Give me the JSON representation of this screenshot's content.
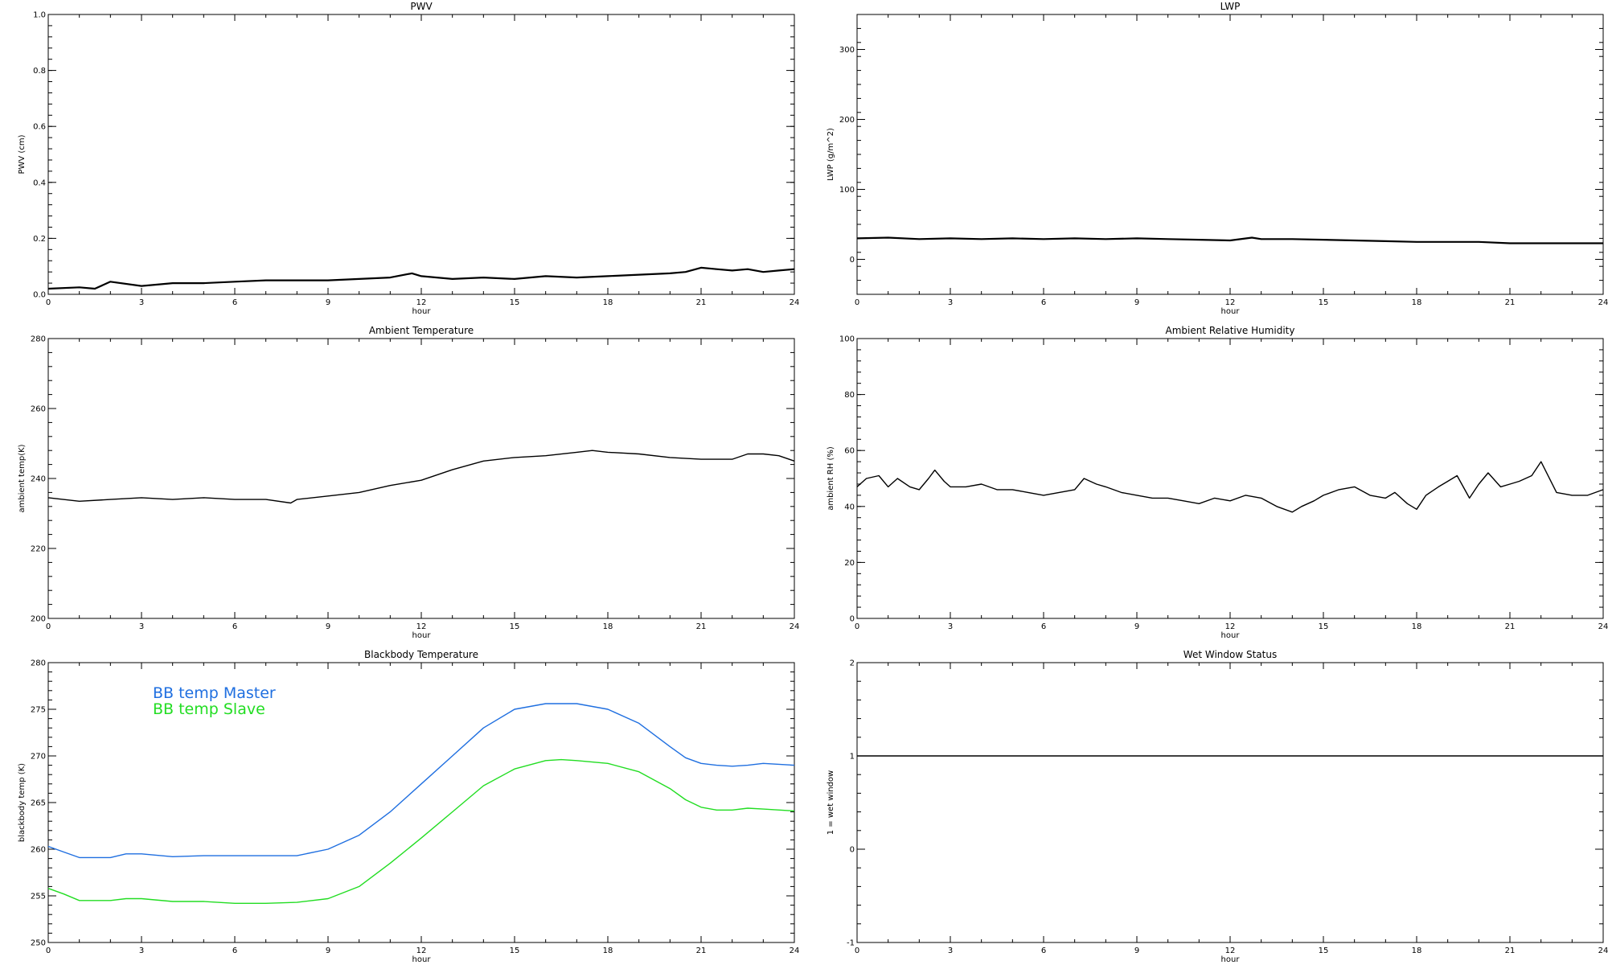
{
  "chart_data": [
    {
      "type": "line",
      "title": "PWV",
      "xlabel": "hour",
      "ylabel": "PWV (cm)",
      "xlim": [
        0,
        24
      ],
      "ylim": [
        0,
        1
      ],
      "xticks": [
        "0",
        "3",
        "6",
        "9",
        "12",
        "15",
        "18",
        "21",
        "24"
      ],
      "yticks": [
        "0.0",
        "0.2",
        "0.4",
        "0.6",
        "0.8",
        "1.0"
      ],
      "grid": false,
      "series": [
        {
          "color": "#000000",
          "x": [
            0,
            1,
            1.5,
            2,
            3,
            4,
            5,
            6,
            7,
            8,
            9,
            10,
            11,
            11.7,
            12,
            13,
            14,
            15,
            16,
            17,
            18,
            19,
            20,
            20.5,
            21,
            21.5,
            22,
            22.5,
            23,
            23.5,
            24
          ],
          "y": [
            0.02,
            0.025,
            0.02,
            0.045,
            0.03,
            0.04,
            0.04,
            0.045,
            0.05,
            0.05,
            0.05,
            0.055,
            0.06,
            0.075,
            0.065,
            0.055,
            0.06,
            0.055,
            0.065,
            0.06,
            0.065,
            0.07,
            0.075,
            0.08,
            0.095,
            0.09,
            0.085,
            0.09,
            0.08,
            0.085,
            0.09
          ]
        }
      ]
    },
    {
      "type": "line",
      "title": "LWP",
      "xlabel": "hour",
      "ylabel": "LWP (g/m^2)",
      "xlim": [
        0,
        24
      ],
      "ylim": [
        -50,
        350
      ],
      "xticks": [
        "0",
        "3",
        "6",
        "9",
        "12",
        "15",
        "18",
        "21",
        "24"
      ],
      "yticks": [
        "0",
        "100",
        "200",
        "300"
      ],
      "grid": false,
      "series": [
        {
          "color": "#000000",
          "x": [
            0,
            1,
            2,
            3,
            4,
            5,
            6,
            7,
            8,
            9,
            10,
            11,
            12,
            12.7,
            13,
            14,
            15,
            16,
            17,
            18,
            19,
            20,
            21,
            22,
            23,
            24
          ],
          "y": [
            30,
            31,
            29,
            30,
            29,
            30,
            29,
            30,
            29,
            30,
            29,
            28,
            27,
            31,
            29,
            29,
            28,
            27,
            26,
            25,
            25,
            25,
            23,
            23,
            23,
            23
          ]
        }
      ]
    },
    {
      "type": "line",
      "title": "Ambient Temperature",
      "xlabel": "hour",
      "ylabel": "ambient temp(K)",
      "xlim": [
        0,
        24
      ],
      "ylim": [
        200,
        280
      ],
      "xticks": [
        "0",
        "3",
        "6",
        "9",
        "12",
        "15",
        "18",
        "21",
        "24"
      ],
      "yticks": [
        "200",
        "220",
        "240",
        "260",
        "280"
      ],
      "grid": false,
      "series": [
        {
          "color": "#000000",
          "x": [
            0,
            1,
            2,
            3,
            4,
            5,
            6,
            7,
            7.8,
            8,
            9,
            10,
            11,
            12,
            13,
            14,
            15,
            16,
            17,
            17.5,
            18,
            19,
            20,
            21,
            22,
            22.5,
            23,
            23.5,
            24
          ],
          "y": [
            234.5,
            233.5,
            234,
            234.5,
            234,
            234.5,
            234,
            234,
            233,
            234,
            235,
            236,
            238,
            239.5,
            242.5,
            245,
            246,
            246.5,
            247.5,
            248,
            247.5,
            247,
            246,
            245.5,
            245.5,
            247,
            247,
            246.5,
            245
          ]
        }
      ]
    },
    {
      "type": "line",
      "title": "Ambient Relative Humidity",
      "xlabel": "hour",
      "ylabel": "ambient RH (%)",
      "xlim": [
        0,
        24
      ],
      "ylim": [
        0,
        100
      ],
      "xticks": [
        "0",
        "3",
        "6",
        "9",
        "12",
        "15",
        "18",
        "21",
        "24"
      ],
      "yticks": [
        "0",
        "20",
        "40",
        "60",
        "80",
        "100"
      ],
      "grid": false,
      "series": [
        {
          "color": "#000000",
          "x": [
            0,
            0.3,
            0.7,
            1,
            1.3,
            1.7,
            2,
            2.3,
            2.5,
            2.8,
            3,
            3.5,
            4,
            4.5,
            5,
            5.5,
            6,
            6.5,
            7,
            7.3,
            7.7,
            8,
            8.5,
            9,
            9.5,
            10,
            10.5,
            11,
            11.5,
            12,
            12.5,
            13,
            13.5,
            14,
            14.3,
            14.7,
            15,
            15.5,
            16,
            16.5,
            17,
            17.3,
            17.7,
            18,
            18.3,
            18.7,
            19,
            19.3,
            19.7,
            20,
            20.3,
            20.7,
            21,
            21.3,
            21.7,
            22,
            22.5,
            23,
            23.5,
            24
          ],
          "y": [
            47,
            50,
            51,
            47,
            50,
            47,
            46,
            50,
            53,
            49,
            47,
            47,
            48,
            46,
            46,
            45,
            44,
            45,
            46,
            50,
            48,
            47,
            45,
            44,
            43,
            43,
            42,
            41,
            43,
            42,
            44,
            43,
            40,
            38,
            40,
            42,
            44,
            46,
            47,
            44,
            43,
            45,
            41,
            39,
            44,
            47,
            49,
            51,
            43,
            48,
            52,
            47,
            48,
            49,
            51,
            56,
            45,
            44,
            44,
            46
          ]
        }
      ]
    },
    {
      "type": "line",
      "title": "Blackbody Temperature",
      "xlabel": "hour",
      "ylabel": "blackbody temp (K)",
      "xlim": [
        0,
        24
      ],
      "ylim": [
        250,
        280
      ],
      "xticks": [
        "0",
        "3",
        "6",
        "9",
        "12",
        "15",
        "18",
        "21",
        "24"
      ],
      "yticks": [
        "250",
        "255",
        "260",
        "265",
        "270",
        "275",
        "280"
      ],
      "legend_position": "top-left",
      "grid": false,
      "series": [
        {
          "name": "BB temp Master",
          "color": "#1f6fe0",
          "x": [
            0,
            0.5,
            1,
            2,
            2.5,
            3,
            4,
            5,
            6,
            7,
            8,
            9,
            10,
            11,
            12,
            13,
            14,
            15,
            16,
            16.5,
            17,
            18,
            19,
            20,
            20.5,
            21,
            21.5,
            22,
            22.5,
            23,
            24
          ],
          "y": [
            260.3,
            259.7,
            259.1,
            259.1,
            259.5,
            259.5,
            259.2,
            259.3,
            259.3,
            259.3,
            259.3,
            260,
            261.5,
            264,
            267,
            270,
            273,
            275,
            275.6,
            275.6,
            275.6,
            275,
            273.5,
            271,
            269.8,
            269.2,
            269,
            268.9,
            269,
            269.2,
            269
          ]
        },
        {
          "name": "BB temp Slave",
          "color": "#22dd22",
          "x": [
            0,
            0.5,
            1,
            2,
            2.5,
            3,
            4,
            5,
            6,
            7,
            8,
            9,
            10,
            11,
            12,
            13,
            14,
            15,
            16,
            16.5,
            17,
            18,
            19,
            20,
            20.5,
            21,
            21.5,
            22,
            22.5,
            23,
            24
          ],
          "y": [
            255.8,
            255.2,
            254.5,
            254.5,
            254.7,
            254.7,
            254.4,
            254.4,
            254.2,
            254.2,
            254.3,
            254.7,
            256,
            258.5,
            261.2,
            264,
            266.8,
            268.6,
            269.5,
            269.6,
            269.5,
            269.2,
            268.3,
            266.5,
            265.3,
            264.5,
            264.2,
            264.2,
            264.4,
            264.3,
            264.1
          ]
        }
      ]
    },
    {
      "type": "line",
      "title": "Wet Window Status",
      "xlabel": "hour",
      "ylabel": "1 = wet window",
      "xlim": [
        0,
        24
      ],
      "ylim": [
        -1,
        2
      ],
      "xticks": [
        "0",
        "3",
        "6",
        "9",
        "12",
        "15",
        "18",
        "21",
        "24"
      ],
      "yticks": [
        "-1",
        "0",
        "1",
        "2"
      ],
      "grid": false,
      "series": [
        {
          "color": "#000000",
          "x": [
            0,
            24
          ],
          "y": [
            1,
            1
          ]
        }
      ]
    }
  ]
}
